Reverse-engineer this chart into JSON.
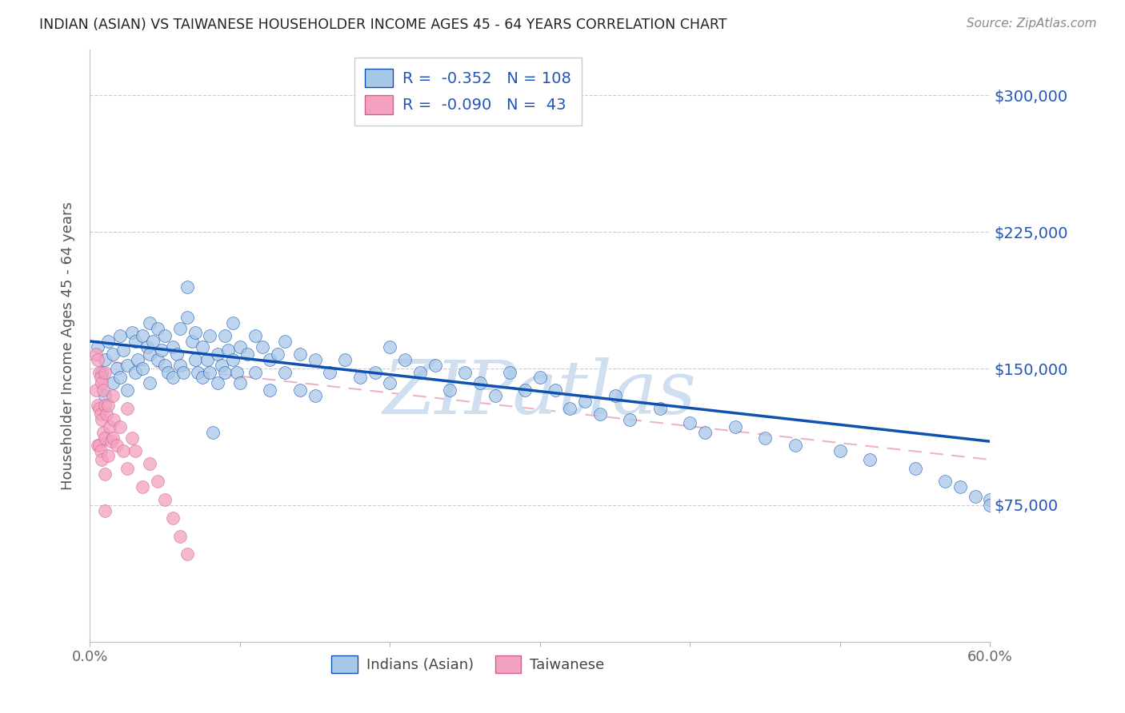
{
  "title": "INDIAN (ASIAN) VS TAIWANESE HOUSEHOLDER INCOME AGES 45 - 64 YEARS CORRELATION CHART",
  "source": "Source: ZipAtlas.com",
  "ylabel": "Householder Income Ages 45 - 64 years",
  "xlim": [
    0.0,
    0.6
  ],
  "ylim": [
    0,
    325000
  ],
  "ytick_positions": [
    75000,
    150000,
    225000,
    300000
  ],
  "ytick_labels": [
    "$75,000",
    "$150,000",
    "$225,000",
    "$300,000"
  ],
  "legend_val1": "-0.352",
  "legend_n1": "108",
  "legend_val2": "-0.090",
  "legend_n2": "43",
  "indian_color": "#a8c8e8",
  "taiwanese_color": "#f4a0c0",
  "trend_indian_color": "#1050b0",
  "trend_taiwanese_color": "#e080a0",
  "watermark": "ZIPatlas",
  "watermark_color": "#d0dff0",
  "indian_scatter_x": [
    0.005,
    0.008,
    0.01,
    0.01,
    0.012,
    0.015,
    0.015,
    0.018,
    0.02,
    0.02,
    0.022,
    0.025,
    0.025,
    0.028,
    0.03,
    0.03,
    0.032,
    0.035,
    0.035,
    0.038,
    0.04,
    0.04,
    0.04,
    0.042,
    0.045,
    0.045,
    0.048,
    0.05,
    0.05,
    0.052,
    0.055,
    0.055,
    0.058,
    0.06,
    0.06,
    0.062,
    0.065,
    0.065,
    0.068,
    0.07,
    0.07,
    0.072,
    0.075,
    0.075,
    0.078,
    0.08,
    0.08,
    0.082,
    0.085,
    0.085,
    0.088,
    0.09,
    0.09,
    0.092,
    0.095,
    0.095,
    0.098,
    0.1,
    0.1,
    0.105,
    0.11,
    0.11,
    0.115,
    0.12,
    0.12,
    0.125,
    0.13,
    0.13,
    0.14,
    0.14,
    0.15,
    0.15,
    0.16,
    0.17,
    0.18,
    0.19,
    0.2,
    0.2,
    0.21,
    0.22,
    0.23,
    0.24,
    0.25,
    0.26,
    0.27,
    0.28,
    0.29,
    0.3,
    0.31,
    0.32,
    0.33,
    0.34,
    0.35,
    0.36,
    0.38,
    0.4,
    0.41,
    0.43,
    0.45,
    0.47,
    0.5,
    0.52,
    0.55,
    0.57,
    0.58,
    0.59,
    0.6,
    0.6
  ],
  "indian_scatter_y": [
    162000,
    148000,
    155000,
    135000,
    165000,
    142000,
    158000,
    150000,
    168000,
    145000,
    160000,
    152000,
    138000,
    170000,
    165000,
    148000,
    155000,
    168000,
    150000,
    162000,
    175000,
    158000,
    142000,
    165000,
    172000,
    155000,
    160000,
    168000,
    152000,
    148000,
    162000,
    145000,
    158000,
    172000,
    152000,
    148000,
    195000,
    178000,
    165000,
    170000,
    155000,
    148000,
    162000,
    145000,
    155000,
    168000,
    148000,
    115000,
    158000,
    142000,
    152000,
    168000,
    148000,
    160000,
    175000,
    155000,
    148000,
    162000,
    142000,
    158000,
    168000,
    148000,
    162000,
    155000,
    138000,
    158000,
    165000,
    148000,
    158000,
    138000,
    155000,
    135000,
    148000,
    155000,
    145000,
    148000,
    162000,
    142000,
    155000,
    148000,
    152000,
    138000,
    148000,
    142000,
    135000,
    148000,
    138000,
    145000,
    138000,
    128000,
    132000,
    125000,
    135000,
    122000,
    128000,
    120000,
    115000,
    118000,
    112000,
    108000,
    105000,
    100000,
    95000,
    88000,
    85000,
    80000,
    78000,
    75000
  ],
  "taiwanese_scatter_x": [
    0.004,
    0.004,
    0.005,
    0.005,
    0.005,
    0.006,
    0.006,
    0.006,
    0.007,
    0.007,
    0.007,
    0.008,
    0.008,
    0.008,
    0.009,
    0.009,
    0.01,
    0.01,
    0.01,
    0.01,
    0.01,
    0.011,
    0.012,
    0.012,
    0.013,
    0.014,
    0.015,
    0.015,
    0.016,
    0.018,
    0.02,
    0.022,
    0.025,
    0.025,
    0.028,
    0.03,
    0.035,
    0.04,
    0.045,
    0.05,
    0.055,
    0.06,
    0.065
  ],
  "taiwanese_scatter_y": [
    158000,
    138000,
    155000,
    130000,
    108000,
    148000,
    128000,
    108000,
    145000,
    125000,
    105000,
    142000,
    122000,
    100000,
    138000,
    115000,
    148000,
    130000,
    112000,
    92000,
    72000,
    125000,
    130000,
    102000,
    118000,
    110000,
    135000,
    112000,
    122000,
    108000,
    118000,
    105000,
    128000,
    95000,
    112000,
    105000,
    85000,
    98000,
    88000,
    78000,
    68000,
    58000,
    48000
  ]
}
